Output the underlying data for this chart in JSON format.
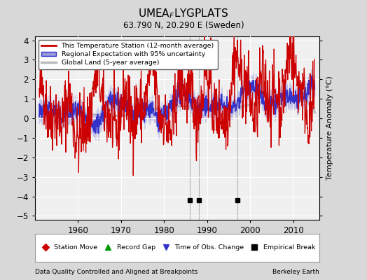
{
  "title": "UMEA$_F$LYGPLATS",
  "subtitle": "63.790 N, 20.290 E (Sweden)",
  "ylabel": "Temperature Anomaly (°C)",
  "xlabel_bottom": "Data Quality Controlled and Aligned at Breakpoints",
  "xlabel_right": "Berkeley Earth",
  "ylim": [
    -5.2,
    4.2
  ],
  "xlim": [
    1950,
    2016
  ],
  "yticks": [
    -5,
    -4,
    -3,
    -2,
    -1,
    0,
    1,
    2,
    3,
    4
  ],
  "xticks": [
    1960,
    1970,
    1980,
    1990,
    2000,
    2010
  ],
  "bg_color": "#d8d8d8",
  "plot_bg_color": "#f0f0f0",
  "empirical_breaks": [
    1986,
    1988,
    1997
  ],
  "red_line_color": "#cc0000",
  "blue_line_color": "#3333cc",
  "blue_fill_color": "#9999dd",
  "gray_line_color": "#bbbbbb",
  "legend_entries": [
    "This Temperature Station (12-month average)",
    "Regional Expectation with 95% uncertainty",
    "Global Land (5-year average)"
  ],
  "bottom_legend": [
    {
      "label": "Station Move",
      "color": "#cc0000",
      "marker": "D"
    },
    {
      "label": "Record Gap",
      "color": "#009900",
      "marker": "^"
    },
    {
      "label": "Time of Obs. Change",
      "color": "#3333cc",
      "marker": "v"
    },
    {
      "label": "Empirical Break",
      "color": "#000000",
      "marker": "s"
    }
  ]
}
